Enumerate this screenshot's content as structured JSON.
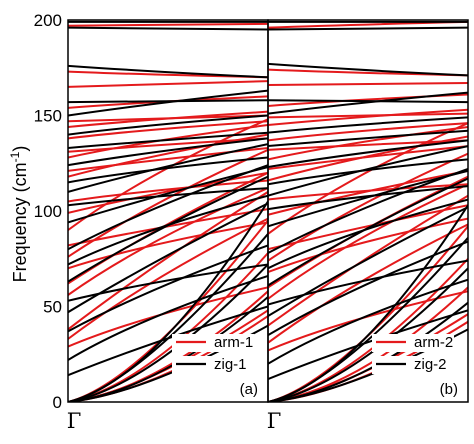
{
  "colors": {
    "series_a": "#e41a1c",
    "series_b": "#000000",
    "frame": "#000000"
  },
  "chart_data": [
    {
      "type": "line",
      "panel_label": "(a)",
      "ylabel": "Frequency (cm",
      "ylabel_superscript": "-1",
      "ylabel_close": ")",
      "xtick_label": "Γ",
      "ylim": [
        0,
        200
      ],
      "yticks": [
        "0",
        "50",
        "100",
        "150",
        "200"
      ],
      "legend_placement": "bottom-right",
      "series": [
        {
          "name": "arm-1",
          "color": "#e41a1c",
          "branches": [
            [
              0,
              95
            ],
            [
              0,
              78
            ],
            [
              0,
              58
            ],
            [
              0,
              48
            ],
            [
              0,
              45
            ],
            [
              29,
              60
            ],
            [
              33,
              96
            ],
            [
              38,
              110
            ],
            [
              56,
              112
            ],
            [
              62,
              120
            ],
            [
              70,
              94
            ],
            [
              76,
              132
            ],
            [
              82,
              101
            ],
            [
              90,
              148
            ],
            [
              99,
              120
            ],
            [
              105,
              116
            ],
            [
              118,
              140
            ],
            [
              121,
              133
            ],
            [
              128,
              145
            ],
            [
              131,
              138
            ],
            [
              138,
              147
            ],
            [
              144,
              152
            ],
            [
              147,
              150
            ],
            [
              154,
              160
            ],
            [
              165,
              168
            ],
            [
              173,
              170
            ],
            [
              197,
              198
            ]
          ]
        },
        {
          "name": "zig-1",
          "color": "#000000",
          "branches": [
            [
              0,
              105
            ],
            [
              0,
              88
            ],
            [
              0,
              72
            ],
            [
              0,
              55
            ],
            [
              0,
              40
            ],
            [
              14,
              50
            ],
            [
              22,
              66
            ],
            [
              37,
              82
            ],
            [
              47,
              104
            ],
            [
              53,
              72
            ],
            [
              63,
              118
            ],
            [
              72,
              108
            ],
            [
              80,
              124
            ],
            [
              94,
              123
            ],
            [
              103,
              112
            ],
            [
              110,
              135
            ],
            [
              115,
              128
            ],
            [
              124,
              138
            ],
            [
              133,
              141
            ],
            [
              140,
              150
            ],
            [
              150,
              163
            ],
            [
              157,
              158
            ],
            [
              176,
              170
            ],
            [
              196,
              195
            ],
            [
              199,
              199
            ]
          ]
        }
      ]
    },
    {
      "type": "line",
      "panel_label": "(b)",
      "xtick_label": "Γ",
      "ylim": [
        0,
        200
      ],
      "legend_placement": "bottom-right",
      "series": [
        {
          "name": "arm-2",
          "color": "#e41a1c",
          "branches": [
            [
              0,
              92
            ],
            [
              0,
              75
            ],
            [
              0,
              60
            ],
            [
              0,
              46
            ],
            [
              0,
              42
            ],
            [
              27,
              58
            ],
            [
              31,
              93
            ],
            [
              40,
              108
            ],
            [
              54,
              114
            ],
            [
              60,
              118
            ],
            [
              68,
              96
            ],
            [
              74,
              130
            ],
            [
              80,
              103
            ],
            [
              88,
              146
            ],
            [
              98,
              121
            ],
            [
              106,
              114
            ],
            [
              116,
              139
            ],
            [
              122,
              134
            ],
            [
              127,
              144
            ],
            [
              132,
              137
            ],
            [
              137,
              146
            ],
            [
              145,
              153
            ],
            [
              149,
              151
            ],
            [
              155,
              161
            ],
            [
              166,
              167
            ],
            [
              174,
              171
            ],
            [
              196,
              199
            ]
          ]
        },
        {
          "name": "zig-2",
          "color": "#000000",
          "branches": [
            [
              0,
              103
            ],
            [
              0,
              86
            ],
            [
              0,
              70
            ],
            [
              0,
              52
            ],
            [
              0,
              38
            ],
            [
              12,
              48
            ],
            [
              20,
              64
            ],
            [
              35,
              84
            ],
            [
              45,
              102
            ],
            [
              51,
              74
            ],
            [
              61,
              117
            ],
            [
              70,
              106
            ],
            [
              78,
              122
            ],
            [
              92,
              121
            ],
            [
              101,
              113
            ],
            [
              108,
              134
            ],
            [
              114,
              127
            ],
            [
              123,
              137
            ],
            [
              134,
              142
            ],
            [
              141,
              149
            ],
            [
              151,
              162
            ],
            [
              158,
              157
            ],
            [
              177,
              171
            ],
            [
              195,
              196
            ],
            [
              199,
              199
            ]
          ]
        }
      ]
    }
  ]
}
